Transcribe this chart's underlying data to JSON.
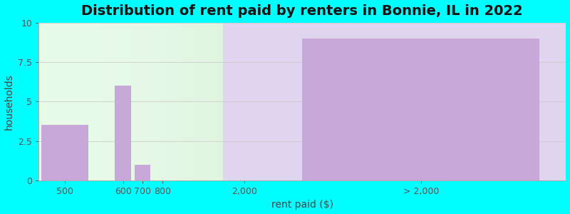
{
  "title": "Distribution of rent paid by renters in Bonnie, IL in 2022",
  "xlabel": "rent paid ($)",
  "ylabel": "households",
  "bar_color": "#c8a8d8",
  "bg_color": "#00ffff",
  "ylim": [
    0,
    10
  ],
  "yticks": [
    0,
    2.5,
    5,
    7.5,
    10
  ],
  "ytick_labels": [
    "0",
    "2.5",
    "5",
    "7.5",
    "10"
  ],
  "title_fontsize": 14,
  "axis_label_fontsize": 10,
  "tick_fontsize": 9,
  "bar_centers": [
    1.0,
    3.2,
    3.95,
    4.7,
    14.5
  ],
  "bar_widths": [
    1.8,
    0.6,
    0.6,
    0.6,
    9.0
  ],
  "bar_heights": [
    3.5,
    6.0,
    1.0,
    0.0,
    9.0
  ],
  "xlim": [
    0,
    20
  ],
  "divider_x": 7.0,
  "xtick_positions": [
    1.0,
    3.2,
    3.95,
    4.7,
    7.8,
    14.5
  ],
  "xtick_labels": [
    "500",
    "600",
    "700",
    "800",
    "2,000",
    "> 2,000"
  ],
  "left_bg": "#d8f0d8",
  "right_bg": "#ddd0e8",
  "grid_color": "#cccccc"
}
